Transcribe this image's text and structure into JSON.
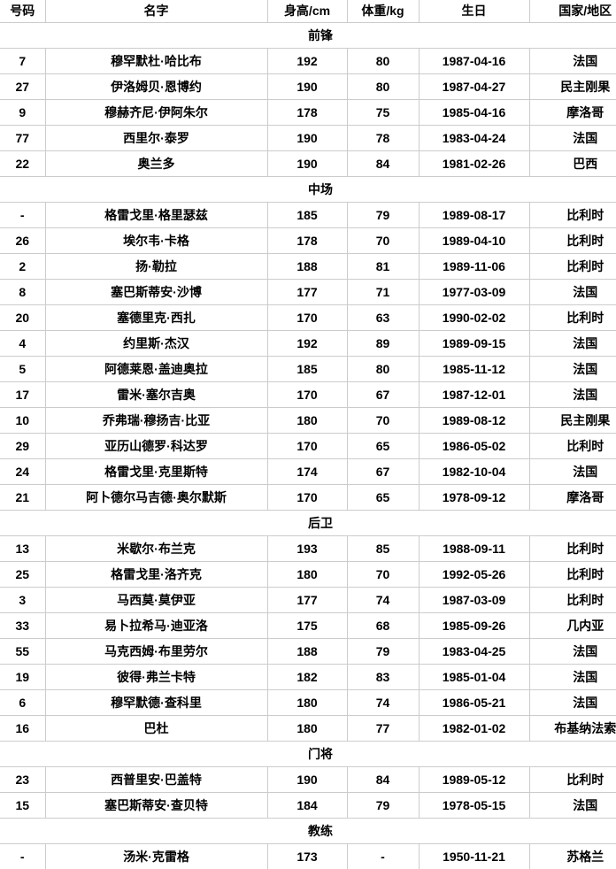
{
  "colors": {
    "border": "#cccccc",
    "text": "#000000",
    "background": "#ffffff"
  },
  "table": {
    "columns": [
      "号码",
      "名字",
      "身高/cm",
      "体重/kg",
      "生日",
      "国家/地区"
    ],
    "sections": [
      {
        "label": "前锋",
        "players": [
          [
            "7",
            "穆罕默杜·哈比布",
            "192",
            "80",
            "1987-04-16",
            "法国"
          ],
          [
            "27",
            "伊洛姆贝·恩博约",
            "190",
            "80",
            "1987-04-27",
            "民主刚果"
          ],
          [
            "9",
            "穆赫齐尼·伊阿朱尔",
            "178",
            "75",
            "1985-04-16",
            "摩洛哥"
          ],
          [
            "77",
            "西里尔·泰罗",
            "190",
            "78",
            "1983-04-24",
            "法国"
          ],
          [
            "22",
            "奥兰多",
            "190",
            "84",
            "1981-02-26",
            "巴西"
          ]
        ]
      },
      {
        "label": "中场",
        "players": [
          [
            "-",
            "格雷戈里·格里瑟兹",
            "185",
            "79",
            "1989-08-17",
            "比利时"
          ],
          [
            "26",
            "埃尔韦·卡格",
            "178",
            "70",
            "1989-04-10",
            "比利时"
          ],
          [
            "2",
            "扬·勒拉",
            "188",
            "81",
            "1989-11-06",
            "比利时"
          ],
          [
            "8",
            "塞巴斯蒂安·沙博",
            "177",
            "71",
            "1977-03-09",
            "法国"
          ],
          [
            "20",
            "塞德里克·西扎",
            "170",
            "63",
            "1990-02-02",
            "比利时"
          ],
          [
            "4",
            "约里斯·杰汉",
            "192",
            "89",
            "1989-09-15",
            "法国"
          ],
          [
            "5",
            "阿德莱恩·盖迪奥拉",
            "185",
            "80",
            "1985-11-12",
            "法国"
          ],
          [
            "17",
            "雷米·塞尔吉奥",
            "170",
            "67",
            "1987-12-01",
            "法国"
          ],
          [
            "10",
            "乔弗瑞·穆扬吉·比亚",
            "180",
            "70",
            "1989-08-12",
            "民主刚果"
          ],
          [
            "29",
            "亚历山德罗·科达罗",
            "170",
            "65",
            "1986-05-02",
            "比利时"
          ],
          [
            "24",
            "格雷戈里·克里斯特",
            "174",
            "67",
            "1982-10-04",
            "法国"
          ],
          [
            "21",
            "阿卜德尔马吉德·奥尔默斯",
            "170",
            "65",
            "1978-09-12",
            "摩洛哥"
          ]
        ]
      },
      {
        "label": "后卫",
        "players": [
          [
            "13",
            "米歇尔·布兰克",
            "193",
            "85",
            "1988-09-11",
            "比利时"
          ],
          [
            "25",
            "格雷戈里·洛齐克",
            "180",
            "70",
            "1992-05-26",
            "比利时"
          ],
          [
            "3",
            "马西莫·莫伊亚",
            "177",
            "74",
            "1987-03-09",
            "比利时"
          ],
          [
            "33",
            "易卜拉希马·迪亚洛",
            "175",
            "68",
            "1985-09-26",
            "几内亚"
          ],
          [
            "55",
            "马克西姆·布里劳尔",
            "188",
            "79",
            "1983-04-25",
            "法国"
          ],
          [
            "19",
            "彼得·弗兰卡特",
            "182",
            "83",
            "1985-01-04",
            "法国"
          ],
          [
            "6",
            "穆罕默德·查科里",
            "180",
            "74",
            "1986-05-21",
            "法国"
          ],
          [
            "16",
            "巴杜",
            "180",
            "77",
            "1982-01-02",
            "布基纳法索"
          ]
        ]
      },
      {
        "label": "门将",
        "players": [
          [
            "23",
            "西普里安·巴盖特",
            "190",
            "84",
            "1989-05-12",
            "比利时"
          ],
          [
            "15",
            "塞巴斯蒂安·查贝特",
            "184",
            "79",
            "1978-05-15",
            "法国"
          ]
        ]
      },
      {
        "label": "教练",
        "players": [
          [
            "-",
            "汤米·克雷格",
            "173",
            "-",
            "1950-11-21",
            "苏格兰"
          ]
        ]
      }
    ]
  }
}
